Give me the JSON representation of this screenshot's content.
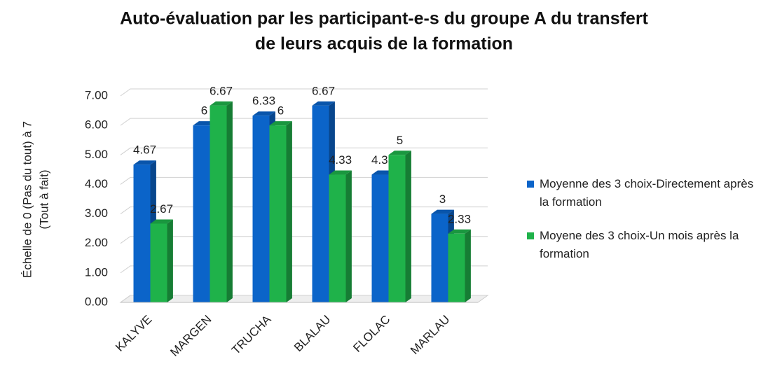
{
  "chart_data": {
    "type": "bar3d",
    "title": [
      "Auto-évaluation par les participant-e-s du groupe A du transfert",
      "de leurs acquis de la formation"
    ],
    "y_label": [
      "Échelle de 0 (Pas du tout) à 7",
      "(Tout à fait)"
    ],
    "categories": [
      "KALYVE",
      "MARGEN",
      "TRUCHA",
      "BLALAU",
      "FLOLAC",
      "MARLAU"
    ],
    "series": [
      {
        "name": "Moyenne des 3 choix-Directement après la formation",
        "color": "#0b64c9",
        "values": [
          4.67,
          6,
          6.33,
          6.67,
          4.33,
          3
        ]
      },
      {
        "name": "Moyene des 3 choix-Un mois après la formation",
        "color": "#1fb24a",
        "values": [
          2.67,
          6.67,
          6,
          4.33,
          5,
          2.33
        ]
      }
    ],
    "ylim": [
      0,
      7
    ],
    "yticks": [
      {
        "value": 0,
        "label": "0.00"
      },
      {
        "value": 1,
        "label": "1.00"
      },
      {
        "value": 2,
        "label": "2.00"
      },
      {
        "value": 3,
        "label": "3.00"
      },
      {
        "value": 4,
        "label": "4.00"
      },
      {
        "value": 5,
        "label": "5.00"
      },
      {
        "value": 6,
        "label": "6.00"
      },
      {
        "value": 7,
        "label": "7.00"
      }
    ],
    "grid": true,
    "legend": "right"
  }
}
